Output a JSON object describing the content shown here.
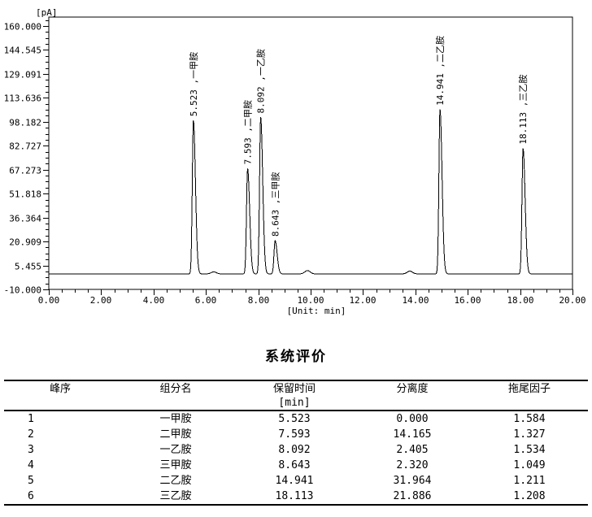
{
  "chart_data": {
    "type": "line",
    "title": "",
    "ylabel": "[pA]",
    "xlabel": "[Unit: min]",
    "xlim": [
      0,
      20
    ],
    "ylim": [
      -10,
      160
    ],
    "x_tick_labels": [
      "0.00",
      "2.00",
      "4.00",
      "6.00",
      "8.00",
      "10.00",
      "12.00",
      "14.00",
      "16.00",
      "18.00",
      "20.00"
    ],
    "x_minor_tick_step_min": 0.5,
    "y_tick_labels": [
      "160.000",
      "144.545",
      "129.091",
      "113.636",
      "98.182",
      "82.727",
      "67.273",
      "51.818",
      "36.364",
      "20.909",
      "5.455",
      "-10.000"
    ],
    "baseline_pA": 0,
    "grid": "off",
    "peaks": [
      {
        "no": 1,
        "rt_min": 5.523,
        "name": "一甲胺",
        "apex_pA": 99,
        "label": "5.523 ,一甲胺"
      },
      {
        "no": 2,
        "rt_min": 7.593,
        "name": "二甲胺",
        "apex_pA": 68,
        "label": "7.593 ,二甲胺"
      },
      {
        "no": 3,
        "rt_min": 8.092,
        "name": "一乙胺",
        "apex_pA": 101,
        "label": "8.092 ,一乙胺"
      },
      {
        "no": 4,
        "rt_min": 8.643,
        "name": "三甲胺",
        "apex_pA": 21.5,
        "label": "8.643 ,三甲胺"
      },
      {
        "no": 5,
        "rt_min": 14.941,
        "name": "二乙胺",
        "apex_pA": 106,
        "label": "14.941 ,二乙胺"
      },
      {
        "no": 6,
        "rt_min": 18.113,
        "name": "三乙胺",
        "apex_pA": 81,
        "label": "18.113 ,三乙胺"
      }
    ],
    "minor_bumps": [
      {
        "rt_min": 6.3,
        "apex_pA": 1.3
      },
      {
        "rt_min": 9.88,
        "apex_pA": 2.2
      },
      {
        "rt_min": 13.79,
        "apex_pA": 1.8
      }
    ]
  },
  "table": {
    "title": "系统评价",
    "headers": [
      "峰序",
      "组分名",
      "保留时间",
      "分离度",
      "拖尾因子"
    ],
    "retention_unit_label": "[min]",
    "rows": [
      [
        "1",
        "一甲胺",
        "5.523",
        "0.000",
        "1.584"
      ],
      [
        "2",
        "二甲胺",
        "7.593",
        "14.165",
        "1.327"
      ],
      [
        "3",
        "一乙胺",
        "8.092",
        "2.405",
        "1.534"
      ],
      [
        "4",
        "三甲胺",
        "8.643",
        "2.320",
        "1.049"
      ],
      [
        "5",
        "二乙胺",
        "14.941",
        "31.964",
        "1.211"
      ],
      [
        "6",
        "三乙胺",
        "18.113",
        "21.886",
        "1.208"
      ]
    ]
  }
}
